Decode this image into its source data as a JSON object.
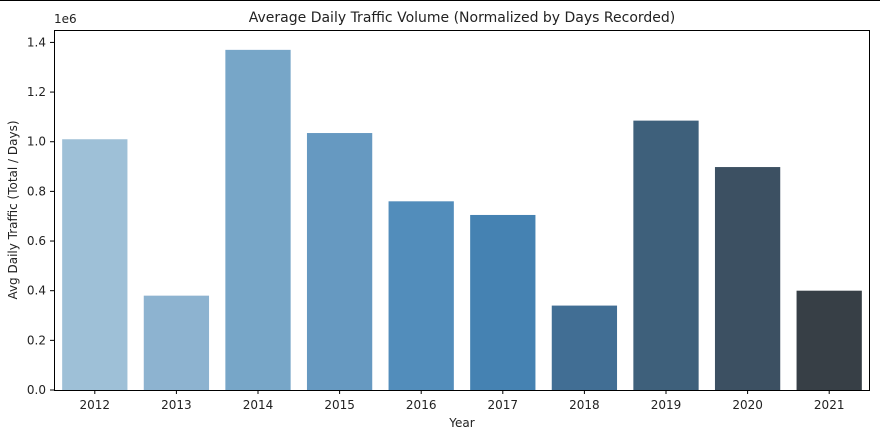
{
  "chart_data": {
    "type": "bar",
    "title": "Average Daily Traffic Volume (Normalized by Days Recorded)",
    "xlabel": "Year",
    "ylabel": "Avg Daily Traffic (Total / Days)",
    "y_multiplier": "1e6",
    "categories": [
      "2012",
      "2013",
      "2014",
      "2015",
      "2016",
      "2017",
      "2018",
      "2019",
      "2020",
      "2021"
    ],
    "values": [
      1010000,
      380000,
      1370000,
      1035000,
      760000,
      705000,
      340000,
      1085000,
      898000,
      400000
    ],
    "colors": [
      "#9ec0d7",
      "#8db3d0",
      "#77a6c8",
      "#6699c1",
      "#528dbb",
      "#4582b2",
      "#416e94",
      "#3e607b",
      "#3c5062",
      "#373f46"
    ],
    "ylim": [
      0,
      1450000
    ],
    "yticks": [
      0,
      200000,
      400000,
      600000,
      800000,
      1000000,
      1200000,
      1400000
    ],
    "ytick_labels": [
      "0.0",
      "0.2",
      "0.4",
      "0.6",
      "0.8",
      "1.0",
      "1.2",
      "1.4"
    ],
    "grid": false,
    "legend": "none"
  }
}
